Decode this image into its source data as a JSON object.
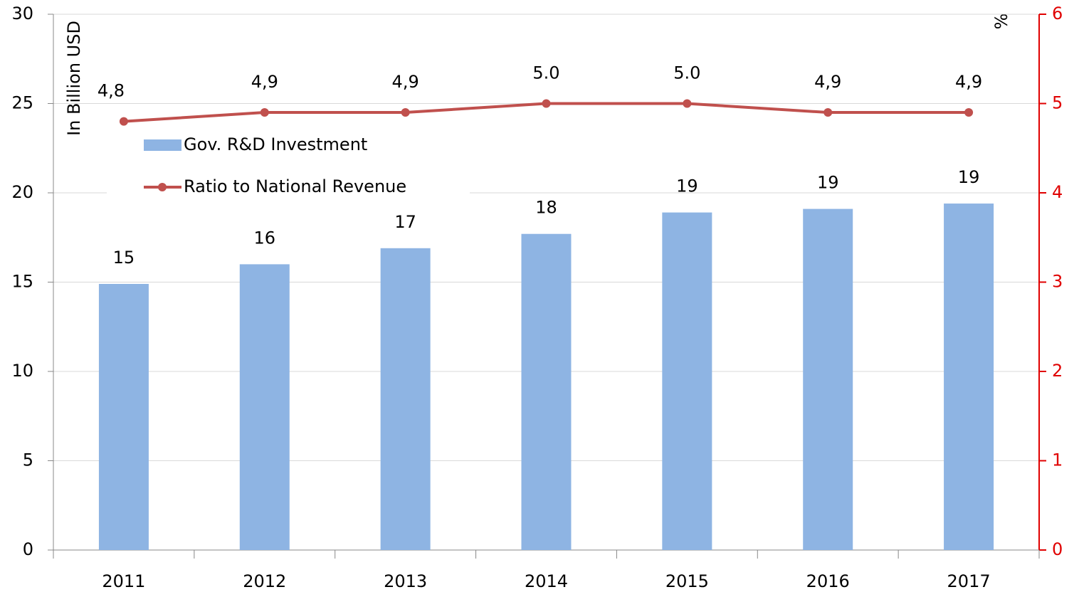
{
  "chart_data": {
    "type": "bar",
    "categories": [
      "2011",
      "2012",
      "2013",
      "2014",
      "2015",
      "2016",
      "2017"
    ],
    "ylabel": "In Billion USD",
    "y2label": "%",
    "ylim": [
      0,
      30
    ],
    "yticks": [
      0,
      5,
      10,
      15,
      20,
      25,
      30
    ],
    "y2lim": [
      0,
      6
    ],
    "y2ticks": [
      0,
      1,
      2,
      3,
      4,
      5,
      6
    ],
    "grid": true,
    "legend": "upper left",
    "series": [
      {
        "name": "Gov. R&D Investment",
        "type": "bar",
        "color": "#8eb4e3",
        "values": [
          14.9,
          16.0,
          16.9,
          17.7,
          18.9,
          19.1,
          19.4
        ],
        "value_labels": [
          "15",
          "16",
          "17",
          "18",
          "19",
          "19",
          "19"
        ]
      },
      {
        "name": "Ratio to National Revenue",
        "type": "line",
        "axis": "y2",
        "color": "#c0504d",
        "values": [
          4.8,
          4.9,
          4.9,
          5.0,
          5.0,
          4.9,
          4.9
        ],
        "value_labels": [
          "4,8",
          "4,9",
          "4,9",
          "5.0",
          "5.0",
          "4,9",
          "4,9"
        ]
      }
    ]
  }
}
